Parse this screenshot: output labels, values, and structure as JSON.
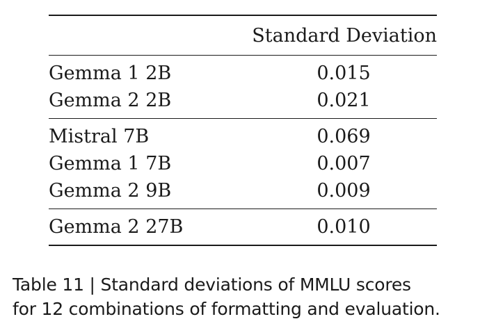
{
  "table": {
    "header": {
      "model": "",
      "value": "Standard Deviation"
    },
    "groups": [
      {
        "rows": [
          {
            "model": "Gemma 1 2B",
            "value": "0.015"
          },
          {
            "model": "Gemma 2 2B",
            "value": "0.021"
          }
        ]
      },
      {
        "rows": [
          {
            "model": "Mistral 7B",
            "value": "0.069"
          },
          {
            "model": "Gemma 1 7B",
            "value": "0.007"
          },
          {
            "model": "Gemma 2 9B",
            "value": "0.009"
          }
        ]
      },
      {
        "rows": [
          {
            "model": "Gemma 2 27B",
            "value": "0.010"
          }
        ]
      }
    ]
  },
  "caption": {
    "line1": "Table 11 | Standard deviations of MMLU scores",
    "line2": "for 12 combinations of formatting and evaluation."
  }
}
